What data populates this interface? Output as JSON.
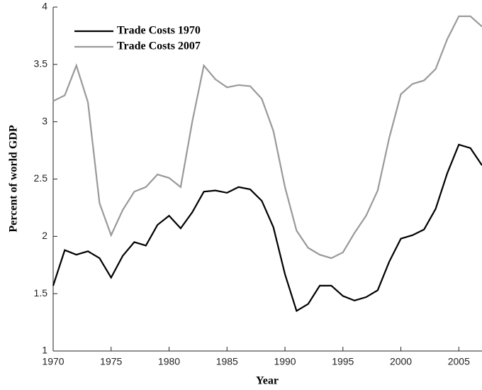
{
  "chart_data": {
    "type": "line",
    "x_label": "Year",
    "y_label": "Percent of world GDP",
    "x": [
      1970,
      1971,
      1972,
      1973,
      1974,
      1975,
      1976,
      1977,
      1978,
      1979,
      1980,
      1981,
      1982,
      1983,
      1984,
      1985,
      1986,
      1987,
      1988,
      1989,
      1990,
      1991,
      1992,
      1993,
      1994,
      1995,
      1996,
      1997,
      1998,
      1999,
      2000,
      2001,
      2002,
      2003,
      2004,
      2005,
      2006,
      2007
    ],
    "series": [
      {
        "name": "Trade Costs 1970",
        "color": "#000000",
        "values": [
          1.57,
          1.88,
          1.84,
          1.87,
          1.81,
          1.64,
          1.83,
          1.95,
          1.92,
          2.1,
          2.18,
          2.07,
          2.21,
          2.39,
          2.4,
          2.38,
          2.43,
          2.41,
          2.31,
          2.08,
          1.67,
          1.35,
          1.41,
          1.57,
          1.57,
          1.48,
          1.44,
          1.47,
          1.53,
          1.78,
          1.98,
          2.01,
          2.06,
          2.24,
          2.55,
          2.8,
          2.77,
          2.62
        ]
      },
      {
        "name": "Trade Costs 2007",
        "color": "#999999",
        "values": [
          3.18,
          3.23,
          3.49,
          3.17,
          2.29,
          2.01,
          2.23,
          2.39,
          2.43,
          2.54,
          2.51,
          2.43,
          3.0,
          3.49,
          3.37,
          3.3,
          3.32,
          3.31,
          3.2,
          2.92,
          2.43,
          2.05,
          1.9,
          1.84,
          1.81,
          1.86,
          2.03,
          2.18,
          2.4,
          2.86,
          3.24,
          3.33,
          3.36,
          3.46,
          3.72,
          3.92,
          3.92,
          3.83
        ]
      }
    ],
    "xlim": [
      1970,
      2007
    ],
    "xticks": [
      1970,
      1975,
      1980,
      1985,
      1990,
      1995,
      2000,
      2005
    ],
    "ylim": [
      1,
      4
    ],
    "yticks": [
      1,
      1.5,
      2,
      2.5,
      3,
      3.5,
      4
    ],
    "legend": "upper-left"
  }
}
